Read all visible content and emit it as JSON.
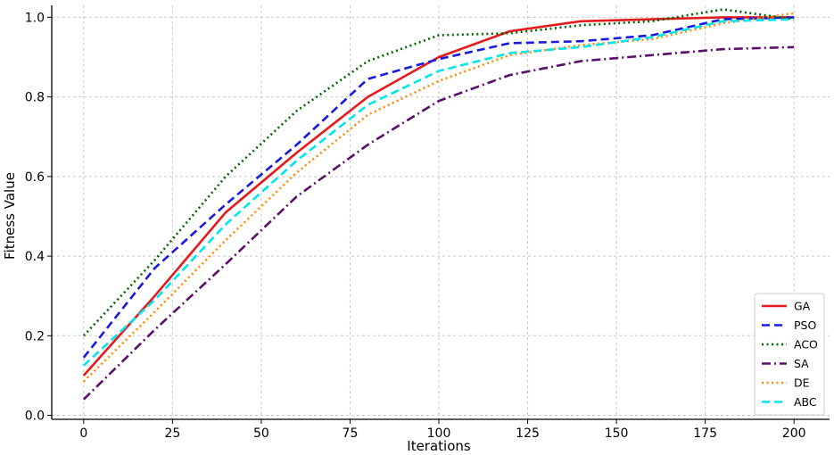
{
  "chart_data": {
    "type": "line",
    "title": "",
    "xlabel": "Iterations",
    "ylabel": "Fitness Value",
    "xlim": [
      -9,
      210
    ],
    "ylim": [
      -0.01,
      1.03
    ],
    "xticks": [
      0,
      25,
      50,
      75,
      100,
      125,
      150,
      175,
      200
    ],
    "xtick_labels": [
      "0",
      "25",
      "50",
      "75",
      "100",
      "125",
      "150",
      "175",
      "200"
    ],
    "yticks": [
      0.0,
      0.2,
      0.4,
      0.6,
      0.8,
      1.0
    ],
    "ytick_labels": [
      "0.0",
      "0.2",
      "0.4",
      "0.6",
      "0.8",
      "1.0"
    ],
    "grid": true,
    "legend_position": "bottom-right",
    "x": [
      0,
      20,
      40,
      60,
      80,
      100,
      120,
      140,
      160,
      180,
      200
    ],
    "series": [
      {
        "name": "GA",
        "color": "#e41a1c",
        "dash": "solid",
        "values": [
          0.1,
          0.3,
          0.51,
          0.66,
          0.8,
          0.9,
          0.965,
          0.99,
          0.995,
          1.0,
          1.0
        ]
      },
      {
        "name": "PSO",
        "color": "#1a1adf",
        "dash": "dashed",
        "values": [
          0.145,
          0.37,
          0.53,
          0.68,
          0.845,
          0.895,
          0.935,
          0.94,
          0.955,
          0.995,
          1.0
        ]
      },
      {
        "name": "ACO",
        "color": "#006400",
        "dash": "dotted",
        "values": [
          0.2,
          0.39,
          0.6,
          0.765,
          0.89,
          0.955,
          0.96,
          0.98,
          0.99,
          1.02,
          0.995
        ]
      },
      {
        "name": "SA",
        "color": "#5b0f6b",
        "dash": "dashdot",
        "values": [
          0.04,
          0.215,
          0.38,
          0.55,
          0.68,
          0.79,
          0.855,
          0.89,
          0.905,
          0.92,
          0.925
        ]
      },
      {
        "name": "DE",
        "color": "#ff8c00",
        "dash": "dotted",
        "values": [
          0.085,
          0.26,
          0.44,
          0.61,
          0.755,
          0.84,
          0.905,
          0.93,
          0.945,
          0.985,
          1.01
        ]
      },
      {
        "name": "ABC",
        "color": "#00e5ee",
        "dash": "dashed",
        "values": [
          0.125,
          0.29,
          0.48,
          0.64,
          0.78,
          0.865,
          0.91,
          0.925,
          0.95,
          0.99,
          0.995
        ]
      }
    ]
  }
}
